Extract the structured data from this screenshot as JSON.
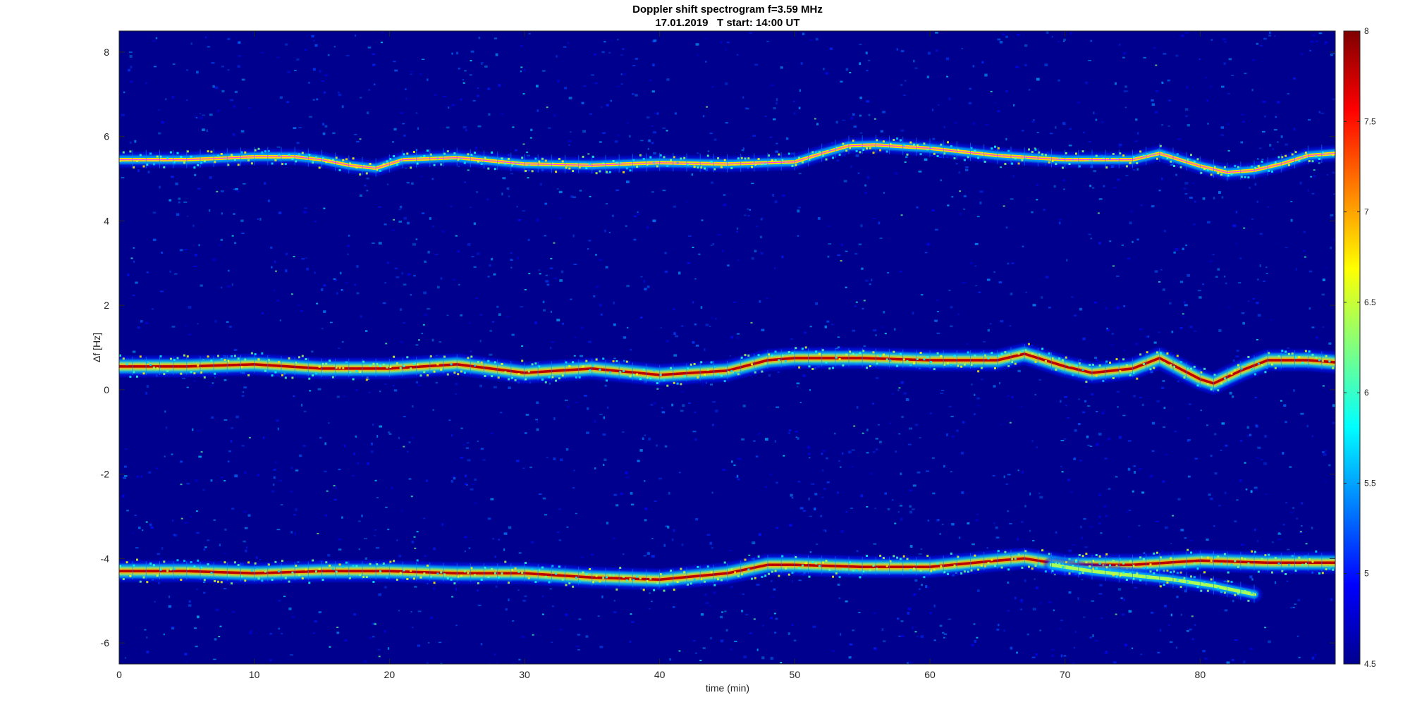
{
  "chart_data": {
    "type": "heatmap",
    "title": "Doppler shift spectrogram f=3.59 MHz",
    "subtitle": "17.01.2019   T start: 14:00 UT",
    "xlabel": "time (min)",
    "ylabel": "Δf [Hz]",
    "xlim": [
      0,
      90
    ],
    "ylim": [
      -6.5,
      8.5
    ],
    "x_ticks": [
      0,
      10,
      20,
      30,
      40,
      50,
      60,
      70,
      80
    ],
    "y_ticks": [
      -6,
      -4,
      -2,
      0,
      2,
      4,
      6,
      8
    ],
    "grid": false,
    "colormap": "jet",
    "background_color": "#00008f",
    "colorbar": {
      "range": [
        4.5,
        8
      ],
      "ticks": [
        "4.5",
        "5",
        "5.5",
        "6",
        "6.5",
        "7",
        "7.5",
        "8"
      ],
      "placement": "right"
    },
    "series": [
      {
        "trace": "upper",
        "t": [
          0,
          5,
          10,
          13,
          15,
          17,
          19,
          20,
          21,
          25,
          30,
          35,
          40,
          45,
          50,
          52,
          54,
          56,
          60,
          65,
          70,
          75,
          77,
          80,
          82,
          84,
          86,
          88,
          90
        ],
        "df": [
          5.45,
          5.45,
          5.52,
          5.52,
          5.45,
          5.32,
          5.25,
          5.35,
          5.45,
          5.5,
          5.35,
          5.32,
          5.38,
          5.35,
          5.4,
          5.6,
          5.78,
          5.8,
          5.72,
          5.55,
          5.45,
          5.45,
          5.6,
          5.3,
          5.15,
          5.2,
          5.35,
          5.55,
          5.6
        ],
        "peak_level": 6.8
      },
      {
        "trace": "middle",
        "t": [
          0,
          5,
          10,
          15,
          20,
          25,
          30,
          35,
          40,
          45,
          48,
          50,
          55,
          60,
          65,
          67,
          70,
          72,
          75,
          77,
          80,
          81,
          83,
          85,
          88,
          90
        ],
        "df": [
          0.55,
          0.55,
          0.6,
          0.5,
          0.5,
          0.6,
          0.4,
          0.5,
          0.35,
          0.45,
          0.7,
          0.75,
          0.75,
          0.7,
          0.7,
          0.85,
          0.55,
          0.4,
          0.5,
          0.75,
          0.25,
          0.15,
          0.45,
          0.7,
          0.7,
          0.65
        ],
        "peak_level": 7.8
      },
      {
        "trace": "lower",
        "t": [
          0,
          5,
          10,
          15,
          20,
          25,
          30,
          35,
          40,
          45,
          48,
          50,
          55,
          60,
          65,
          67,
          70,
          75,
          80,
          85,
          90
        ],
        "df": [
          -4.3,
          -4.3,
          -4.35,
          -4.3,
          -4.3,
          -4.35,
          -4.35,
          -4.45,
          -4.5,
          -4.35,
          -4.15,
          -4.15,
          -4.2,
          -4.2,
          -4.05,
          -4.0,
          -4.15,
          -4.15,
          -4.05,
          -4.1,
          -4.1
        ],
        "peak_level": 7.8
      },
      {
        "trace": "lower-secondary",
        "t": [
          69,
          72,
          75,
          78,
          81,
          84
        ],
        "df": [
          -4.15,
          -4.3,
          -4.4,
          -4.5,
          -4.65,
          -4.85
        ],
        "peak_level": 6.4
      }
    ],
    "fitted_curve": {
      "color": "#ff33ff",
      "t": [
        0,
        5,
        10,
        13,
        15,
        17,
        19,
        20,
        21,
        25,
        30,
        35,
        40,
        45,
        50,
        52,
        54,
        56,
        60,
        65,
        70,
        75,
        77,
        80,
        82,
        84,
        86,
        88,
        90
      ],
      "df": [
        5.45,
        5.45,
        5.52,
        5.52,
        5.45,
        5.32,
        5.25,
        5.35,
        5.45,
        5.5,
        5.35,
        5.32,
        5.38,
        5.35,
        5.4,
        5.6,
        5.78,
        5.8,
        5.72,
        5.55,
        5.45,
        5.45,
        5.6,
        5.3,
        5.15,
        5.2,
        5.35,
        5.55,
        5.6
      ]
    }
  }
}
